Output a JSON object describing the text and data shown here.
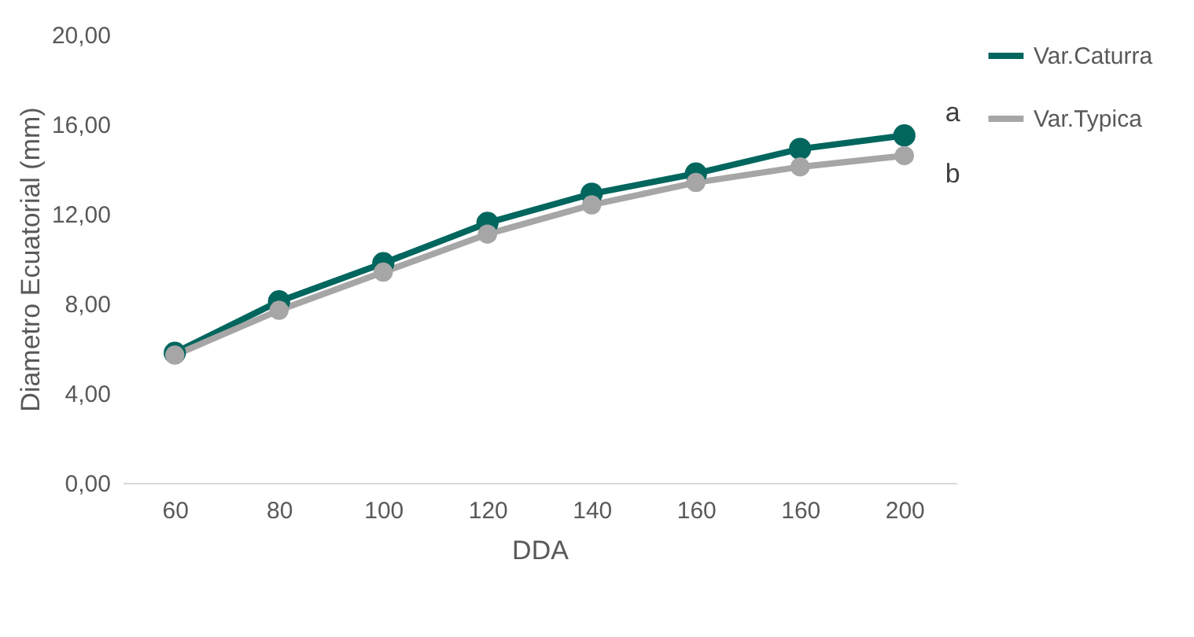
{
  "chart_data": {
    "type": "line",
    "xlabel": "DDA",
    "ylabel": "Diametro Ecuatorial (mm)",
    "categories": [
      "60",
      "80",
      "100",
      "120",
      "140",
      "160",
      "160",
      "200"
    ],
    "series": [
      {
        "name": "Var.Caturra",
        "color": "#00665e",
        "values": [
          5.8,
          8.1,
          9.8,
          11.6,
          12.9,
          13.8,
          14.9,
          15.5
        ]
      },
      {
        "name": "Var.Typica",
        "color": "#a6a6a6",
        "values": [
          5.7,
          7.7,
          9.4,
          11.1,
          12.4,
          13.4,
          14.1,
          14.6
        ]
      }
    ],
    "ylim": [
      0,
      20
    ],
    "yticks": [
      {
        "value": 0,
        "label": "0,00"
      },
      {
        "value": 4,
        "label": "4,00"
      },
      {
        "value": 8,
        "label": "8,00"
      },
      {
        "value": 12,
        "label": "12,00"
      },
      {
        "value": 16,
        "label": "16,00"
      },
      {
        "value": 20,
        "label": "20,00"
      }
    ],
    "annotations": [
      {
        "text": "a",
        "x": "200",
        "y": 15.5
      },
      {
        "text": "b",
        "x": "200",
        "y": 14.6
      }
    ],
    "legend": "right",
    "marker": "circle",
    "line_style": "solid",
    "grid": false
  }
}
